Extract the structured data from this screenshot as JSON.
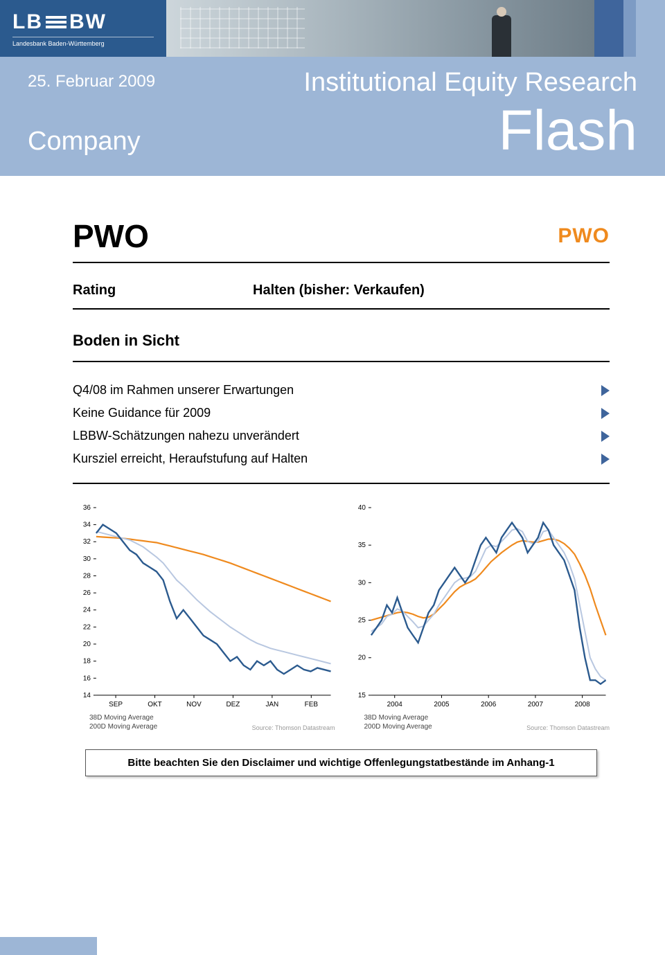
{
  "header": {
    "logo_main": "LB≡BW",
    "logo_sub": "Landesbank Baden-Württemberg",
    "banner_colors": [
      "#3f659c",
      "#7d9bc4",
      "#9db6d6"
    ]
  },
  "title_block": {
    "date": "25. Februar 2009",
    "ier": "Institutional Equity Research",
    "company_label": "Company",
    "flash": "Flash",
    "bg_color": "#9db6d6"
  },
  "main": {
    "company_name": "PWO",
    "pwo_logo": "PWO",
    "pwo_logo_color": "#ef8a1e",
    "rating_label": "Rating",
    "rating_value": "Halten (bisher: Verkaufen)",
    "subtitle": "Boden in Sicht",
    "bullets": [
      "Q4/08 im Rahmen unserer Erwartungen",
      "Keine Guidance für 2009",
      "LBBW-Schätzungen nahezu unverändert",
      "Kursziel erreicht, Heraufstufung auf Halten"
    ]
  },
  "chart_left": {
    "type": "line",
    "y_ticks": [
      14,
      16,
      18,
      20,
      22,
      24,
      26,
      28,
      30,
      32,
      34,
      36
    ],
    "ylim": [
      14,
      36
    ],
    "x_labels": [
      "SEP",
      "OKT",
      "NOV",
      "DEZ",
      "JAN",
      "FEB"
    ],
    "price_color": "#2b5a8e",
    "ma38_color": "#b8c7e0",
    "ma200_color": "#ef8a1e",
    "legend1": "38D Moving Average",
    "legend2": "200D Moving Average",
    "source": "Source: Thomson Datastream",
    "series_price": [
      33,
      34,
      33.5,
      33,
      32,
      31,
      30.5,
      29.5,
      29,
      28.5,
      27.5,
      25,
      23,
      24,
      23,
      22,
      21,
      20.5,
      20,
      19,
      18,
      18.5,
      17.5,
      17,
      18,
      17.5,
      18,
      17,
      16.5,
      17,
      17.5,
      17,
      16.8,
      17.2,
      17,
      16.8
    ],
    "series_ma38": [
      33.2,
      33,
      32.8,
      32.6,
      32.4,
      32.2,
      31.8,
      31.4,
      30.8,
      30.2,
      29.5,
      28.5,
      27.5,
      26.8,
      26,
      25.2,
      24.5,
      23.8,
      23.2,
      22.6,
      22,
      21.5,
      21,
      20.5,
      20.1,
      19.8,
      19.5,
      19.3,
      19.1,
      18.9,
      18.7,
      18.5,
      18.3,
      18.1,
      17.9,
      17.7
    ],
    "series_ma200": [
      32.6,
      32.55,
      32.5,
      32.45,
      32.4,
      32.3,
      32.2,
      32.1,
      32,
      31.9,
      31.7,
      31.5,
      31.3,
      31.1,
      30.9,
      30.7,
      30.5,
      30.25,
      30,
      29.75,
      29.5,
      29.2,
      28.9,
      28.6,
      28.3,
      28,
      27.7,
      27.4,
      27.1,
      26.8,
      26.5,
      26.2,
      25.9,
      25.6,
      25.3,
      25
    ],
    "background_color": "#ffffff",
    "tick_fontsize": 10,
    "tick_color": "#000000"
  },
  "chart_right": {
    "type": "line",
    "y_ticks": [
      15,
      20,
      25,
      30,
      35,
      40
    ],
    "ylim": [
      15,
      40
    ],
    "x_labels": [
      "2004",
      "2005",
      "2006",
      "2007",
      "2008"
    ],
    "price_color": "#2b5a8e",
    "ma38_color": "#b8c7e0",
    "ma200_color": "#ef8a1e",
    "legend1": "38D Moving Average",
    "legend2": "200D Moving Average",
    "source": "Source: Thomson Datastream",
    "series_price": [
      23,
      24,
      25,
      27,
      26,
      28,
      26,
      24,
      23,
      22,
      24,
      26,
      27,
      29,
      30,
      31,
      32,
      31,
      30,
      31,
      33,
      35,
      36,
      35,
      34,
      36,
      37,
      38,
      37,
      36,
      34,
      35,
      36,
      38,
      37,
      35,
      34,
      33,
      31,
      29,
      24,
      20,
      17,
      17,
      16.5,
      17
    ],
    "series_ma38": [
      23.5,
      24,
      24.5,
      25.5,
      25.8,
      26.5,
      26.2,
      25.5,
      24.8,
      24,
      24.2,
      25,
      25.8,
      27,
      28,
      29,
      30,
      30.5,
      30.6,
      30.8,
      31.5,
      33,
      34.5,
      35,
      34.8,
      35.5,
      36.2,
      37,
      37.2,
      36.8,
      35.5,
      35.2,
      35.5,
      36.8,
      37,
      36,
      35,
      34,
      32.5,
      30.5,
      27,
      23.5,
      20,
      18.5,
      17.5,
      17
    ],
    "series_ma200": [
      25,
      25.2,
      25.4,
      25.6,
      25.8,
      26,
      26.1,
      26,
      25.8,
      25.5,
      25.3,
      25.4,
      25.8,
      26.5,
      27.2,
      28,
      28.8,
      29.4,
      29.8,
      30.1,
      30.5,
      31.2,
      32,
      32.8,
      33.4,
      34,
      34.5,
      35,
      35.4,
      35.6,
      35.5,
      35.4,
      35.4,
      35.6,
      35.8,
      35.8,
      35.6,
      35.2,
      34.6,
      33.8,
      32.5,
      31,
      29.2,
      27,
      25,
      23
    ],
    "background_color": "#ffffff",
    "tick_fontsize": 10,
    "tick_color": "#000000"
  },
  "disclaimer": "Bitte beachten Sie den Disclaimer und wichtige Offenlegungstatbestände im Anhang-1"
}
